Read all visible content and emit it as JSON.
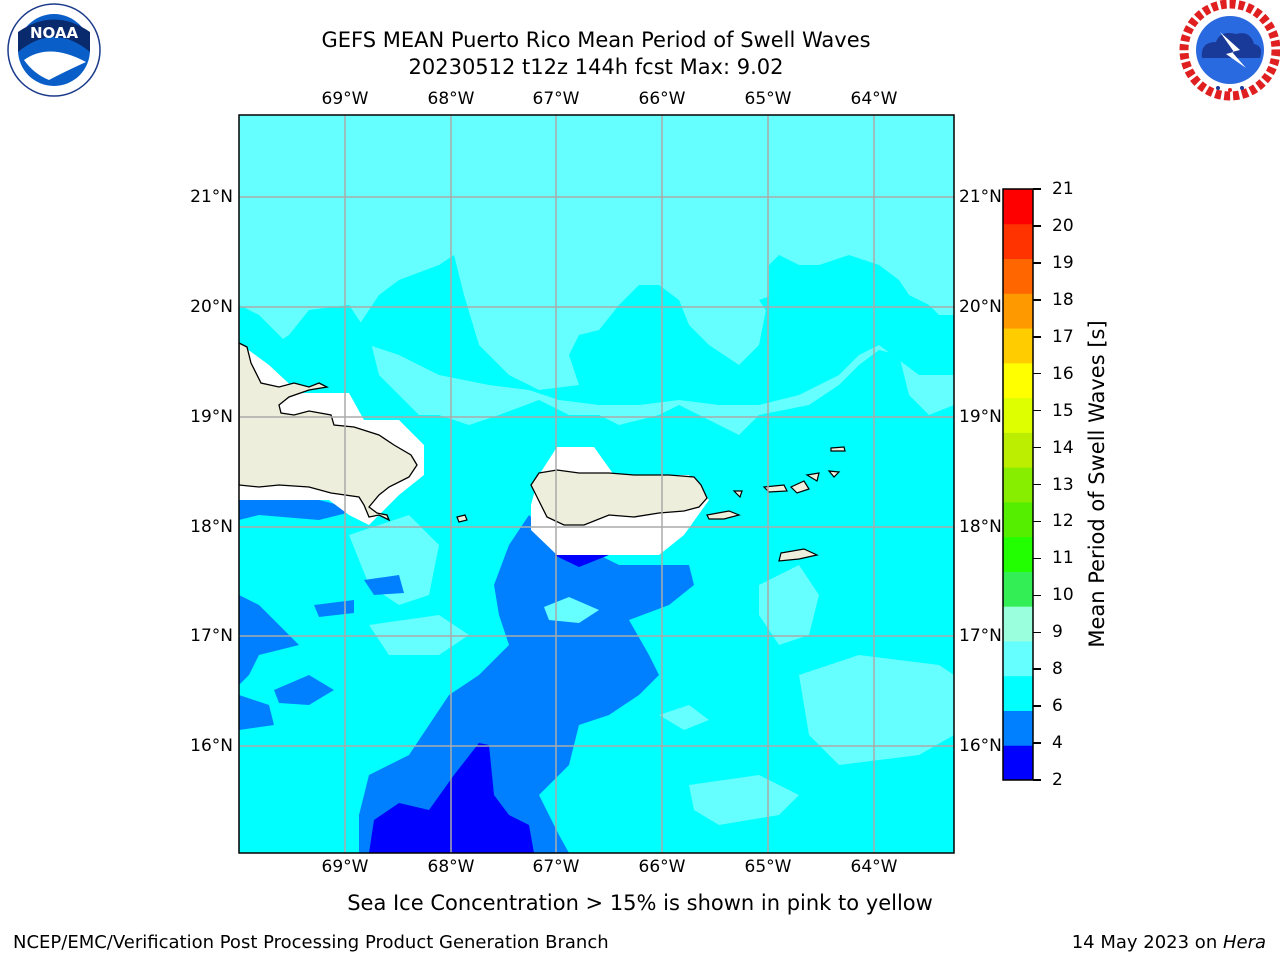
{
  "title": {
    "line1": "GEFS MEAN Puerto Rico Mean Period of Swell Waves",
    "line2": "20230512 t12z 144h fcst   Max: 9.02"
  },
  "logos": {
    "left": {
      "name": "noaa-logo",
      "text": "NOAA",
      "ring_text": "NATIONAL OCEANIC AND ATMOSPHERIC ADMINISTRATION · U.S. DEPARTMENT OF COMMERCE"
    },
    "right": {
      "name": "nws-logo",
      "ring_text": "NATIONAL WEATHER SERVICE"
    }
  },
  "map": {
    "lon_ticks": [
      "69°W",
      "68°W",
      "67°W",
      "66°W",
      "65°W",
      "64°W"
    ],
    "lat_ticks": [
      "21°N",
      "20°N",
      "19°N",
      "18°N",
      "17°N",
      "16°N"
    ],
    "colors": {
      "c2_4": "#0000ff",
      "c4_6": "#0080ff",
      "c6_8": "#00ffff",
      "c8_9": "#66ffff",
      "c9_10": "#99ffdd",
      "land": "#eeeedd",
      "mask": "#ffffff",
      "grid": "#aaaaaa",
      "coast": "#000000"
    }
  },
  "colorbar": {
    "label": "Mean Period of Swell Waves [s]",
    "ticks": [
      "21",
      "20",
      "19",
      "18",
      "17",
      "16",
      "15",
      "14",
      "13",
      "12",
      "11",
      "10",
      "9",
      "8",
      "6",
      "4",
      "2"
    ],
    "levels": [
      2,
      4,
      6,
      8,
      9,
      10,
      11,
      12,
      13,
      14,
      15,
      16,
      17,
      18,
      19,
      20,
      21
    ],
    "colors": [
      "#0000ff",
      "#0080ff",
      "#00ffff",
      "#66ffff",
      "#99ffdd",
      "#33ee55",
      "#22ff00",
      "#55ee00",
      "#88ee00",
      "#bbee00",
      "#ddff00",
      "#ffff00",
      "#ffcc00",
      "#ff9900",
      "#ff6600",
      "#ff3300",
      "#ff0000"
    ]
  },
  "subtitle": "Sea Ice Concentration > 15% is shown in pink to yellow",
  "footer": {
    "left": "NCEP/EMC/Verification Post Processing Product Generation Branch",
    "right_prefix": "14 May 2023 on ",
    "right_host": "Hera"
  }
}
